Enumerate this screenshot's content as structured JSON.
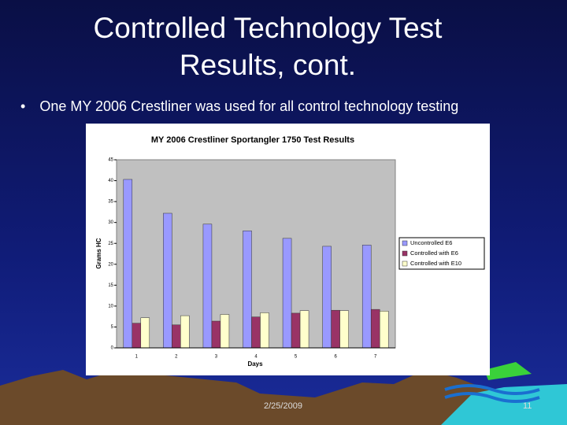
{
  "slide": {
    "title": "Controlled Technology Test Results, cont.",
    "bullet": "One MY 2006 Crestliner was used for all control technology testing",
    "date": "2/25/2009",
    "page_number": "11"
  },
  "chart_data": {
    "type": "bar",
    "title": "MY 2006 Crestliner Sportangler 1750 Test Results",
    "x_label": "Days",
    "y_label": "Grams HC",
    "categories": [
      "1",
      "2",
      "3",
      "4",
      "5",
      "6",
      "7"
    ],
    "series": [
      {
        "name": "Uncontrolled E6",
        "color": "#9999ff",
        "values": [
          40.3,
          32.2,
          29.6,
          28.0,
          26.2,
          24.3,
          24.6
        ]
      },
      {
        "name": "Controlled with E6",
        "color": "#993366",
        "values": [
          5.9,
          5.5,
          6.4,
          7.4,
          8.3,
          9.0,
          9.2
        ]
      },
      {
        "name": "Controlled with E10",
        "color": "#ffffcc",
        "values": [
          7.2,
          7.7,
          8.0,
          8.4,
          8.9,
          8.9,
          8.8
        ]
      }
    ],
    "ylim": [
      0,
      45
    ],
    "yticks": [
      0,
      5,
      10,
      15,
      20,
      25,
      30,
      35,
      40,
      45
    ],
    "grid": false,
    "legend": "right"
  }
}
